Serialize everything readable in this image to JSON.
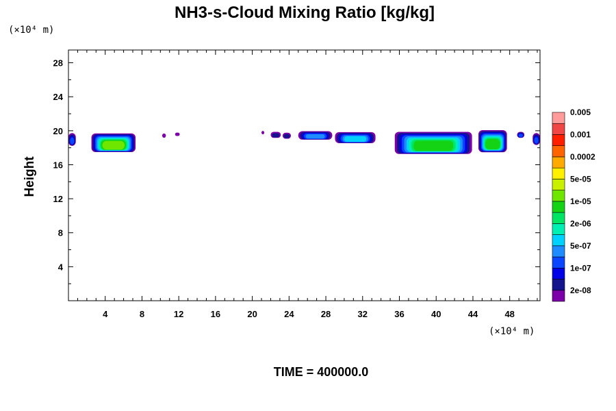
{
  "chart_data": {
    "type": "heatmap",
    "title": "NH3-s-Cloud Mixing Ratio [kg/kg]",
    "xunit": "(×10⁴ m)",
    "yunit": "(×10⁴ m)",
    "ylabel": "Height",
    "footer": "TIME = 400000.0",
    "xlim": [
      0,
      51.3
    ],
    "ylim": [
      0,
      29.5
    ],
    "xticks": [
      "4",
      "8",
      "12",
      "16",
      "20",
      "24",
      "28",
      "32",
      "36",
      "40",
      "44",
      "48"
    ],
    "yticks": [
      "4",
      "8",
      "12",
      "16",
      "20",
      "24",
      "28"
    ],
    "colorbar": {
      "colors": [
        "#7B00A8",
        "#14148C",
        "#0000E6",
        "#0A46FF",
        "#1E8CFF",
        "#00D2FF",
        "#00F0B4",
        "#00E664",
        "#14D214",
        "#6EE600",
        "#C8F000",
        "#FFF000",
        "#FFAA00",
        "#FF6400",
        "#FF1E00",
        "#F04646",
        "#FF9B9B"
      ],
      "labels": [
        "2e-08",
        "1e-07",
        "5e-07",
        "2e-06",
        "1e-05",
        "5e-05",
        "0.0002",
        "0.001",
        "0.005"
      ]
    },
    "cloud_blobs": [
      {
        "x0": 0.0,
        "x1": 0.8,
        "y0": 18.3,
        "y1": 19.8,
        "level": 3
      },
      {
        "x0": 2.5,
        "x1": 7.3,
        "y0": 17.6,
        "y1": 19.8,
        "level": 9
      },
      {
        "x0": 10.2,
        "x1": 10.6,
        "y0": 19.2,
        "y1": 19.7,
        "level": 0
      },
      {
        "x0": 11.6,
        "x1": 12.1,
        "y0": 19.4,
        "y1": 19.8,
        "level": 0
      },
      {
        "x0": 21.0,
        "x1": 21.3,
        "y0": 19.6,
        "y1": 20.0,
        "level": 0
      },
      {
        "x0": 22.0,
        "x1": 23.1,
        "y0": 19.2,
        "y1": 19.9,
        "level": 1
      },
      {
        "x0": 23.3,
        "x1": 24.2,
        "y0": 19.1,
        "y1": 19.8,
        "level": 1
      },
      {
        "x0": 25.0,
        "x1": 28.7,
        "y0": 19.0,
        "y1": 20.0,
        "level": 4
      },
      {
        "x0": 29.0,
        "x1": 33.4,
        "y0": 18.6,
        "y1": 19.9,
        "level": 5
      },
      {
        "x0": 35.5,
        "x1": 43.9,
        "y0": 17.4,
        "y1": 20.0,
        "level": 8
      },
      {
        "x0": 44.6,
        "x1": 47.7,
        "y0": 17.6,
        "y1": 20.2,
        "level": 8
      },
      {
        "x0": 48.8,
        "x1": 49.6,
        "y0": 19.2,
        "y1": 19.9,
        "level": 3
      },
      {
        "x0": 50.5,
        "x1": 51.3,
        "y0": 18.4,
        "y1": 19.8,
        "level": 3
      }
    ]
  }
}
